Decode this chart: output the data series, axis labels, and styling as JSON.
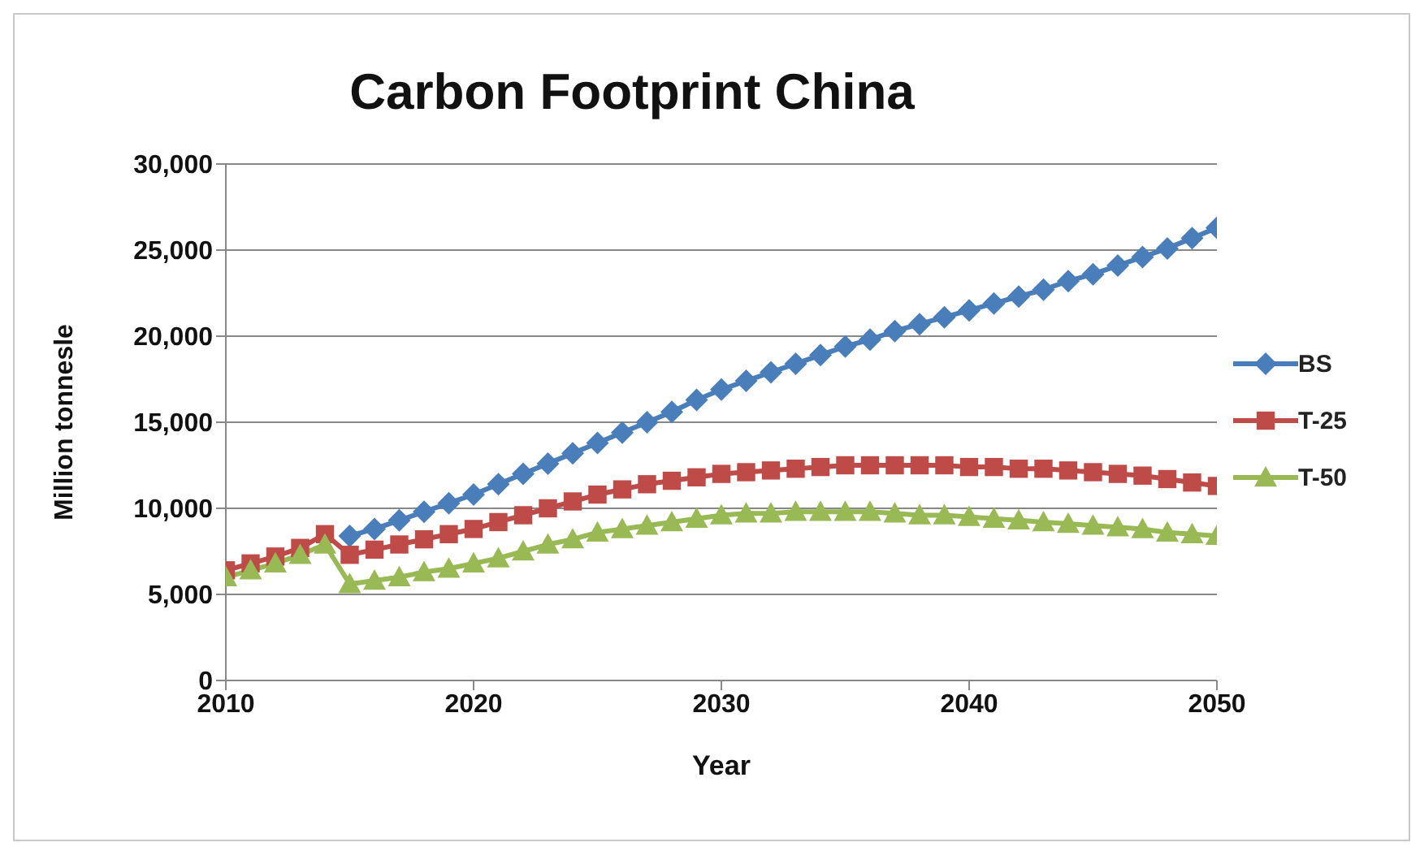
{
  "chart_data": {
    "type": "line",
    "title": "Carbon Footprint China",
    "xlabel": "Year",
    "ylabel": "Million tonnesle",
    "x": [
      2010,
      2011,
      2012,
      2013,
      2014,
      2015,
      2016,
      2017,
      2018,
      2019,
      2020,
      2021,
      2022,
      2023,
      2024,
      2025,
      2026,
      2027,
      2028,
      2029,
      2030,
      2031,
      2032,
      2033,
      2034,
      2035,
      2036,
      2037,
      2038,
      2039,
      2040,
      2041,
      2042,
      2043,
      2044,
      2045,
      2046,
      2047,
      2048,
      2049,
      2050
    ],
    "series": [
      {
        "name": "BS",
        "color": "#4a7ebb",
        "marker": "diamond",
        "values": [
          null,
          null,
          null,
          null,
          null,
          8400,
          8800,
          9300,
          9800,
          10300,
          10800,
          11400,
          12000,
          12600,
          13200,
          13800,
          14400,
          15000,
          15600,
          16300,
          16900,
          17400,
          17900,
          18400,
          18900,
          19400,
          19800,
          20300,
          20700,
          21100,
          21500,
          21900,
          22300,
          22700,
          23200,
          23600,
          24100,
          24600,
          25100,
          25700,
          26300
        ]
      },
      {
        "name": "T-25",
        "color": "#be4b48",
        "marker": "square",
        "values": [
          6400,
          6800,
          7200,
          7700,
          8500,
          7300,
          7600,
          7900,
          8200,
          8500,
          8800,
          9200,
          9600,
          10000,
          10400,
          10800,
          11100,
          11400,
          11600,
          11800,
          12000,
          12100,
          12200,
          12300,
          12400,
          12500,
          12500,
          12500,
          12500,
          12500,
          12400,
          12400,
          12300,
          12300,
          12200,
          12100,
          12000,
          11900,
          11700,
          11500,
          11300
        ]
      },
      {
        "name": "T-50",
        "color": "#98b954",
        "marker": "triangle",
        "values": [
          6000,
          6400,
          6800,
          7300,
          7900,
          5600,
          5800,
          6000,
          6300,
          6500,
          6800,
          7100,
          7500,
          7900,
          8200,
          8600,
          8800,
          9000,
          9200,
          9400,
          9600,
          9700,
          9700,
          9800,
          9800,
          9800,
          9800,
          9700,
          9600,
          9600,
          9500,
          9400,
          9300,
          9200,
          9100,
          9000,
          8900,
          8800,
          8600,
          8500,
          8400
        ]
      }
    ],
    "xlim": [
      2010,
      2050
    ],
    "xticks": [
      2010,
      2020,
      2030,
      2040,
      2050
    ],
    "ylim": [
      0,
      30000
    ],
    "yticks": [
      {
        "value": 0,
        "label": "0"
      },
      {
        "value": 5000,
        "label": "5,000"
      },
      {
        "value": 10000,
        "label": "10,000"
      },
      {
        "value": 15000,
        "label": "15,000"
      },
      {
        "value": 20000,
        "label": "20,000"
      },
      {
        "value": 25000,
        "label": "25,000"
      },
      {
        "value": 30000,
        "label": "30,000"
      }
    ],
    "grid": "y",
    "legend": "right"
  }
}
